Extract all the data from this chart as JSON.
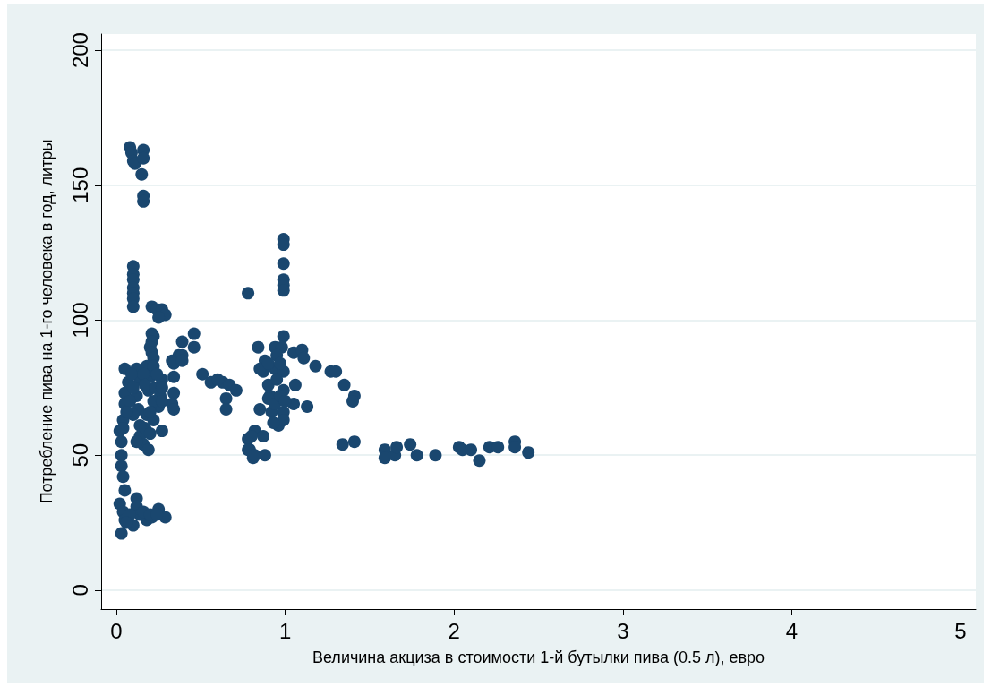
{
  "chart_data": {
    "type": "scatter",
    "xlabel": "Величина акциза в стоимости 1-й бутылки пива (0.5 л), евро",
    "ylabel": "Потребление пива на 1-го человека в год, литры",
    "x": [
      0.08,
      0.09,
      0.1,
      0.11,
      0.16,
      0.16,
      0.15,
      0.16,
      0.16,
      0.1,
      0.1,
      0.1,
      0.1,
      0.1,
      0.1,
      0.1,
      0.78,
      0.21,
      0.24,
      0.27,
      0.29,
      0.25,
      0.21,
      0.22,
      0.21,
      0.2,
      0.21,
      0.22,
      0.39,
      0.46,
      0.46,
      0.37,
      0.33,
      0.34,
      0.39,
      0.39,
      0.34,
      0.34,
      0.33,
      0.34,
      0.05,
      0.12,
      0.18,
      0.22,
      0.07,
      0.14,
      0.2,
      0.27,
      0.05,
      0.12,
      0.19,
      0.26,
      0.05,
      0.13,
      0.25,
      0.18,
      0.22,
      0.04,
      0.14,
      0.27,
      0.02,
      0.14,
      0.16,
      0.19,
      0.03,
      0.03,
      0.03,
      0.04,
      0.05,
      0.09,
      0.16,
      0.24,
      0.1,
      0.17,
      0.23,
      0.27,
      0.08,
      0.22,
      0.27,
      0.1,
      0.2,
      0.06,
      0.17,
      0.2,
      0.04,
      0.12,
      0.02,
      0.04,
      0.12,
      0.12,
      0.05,
      0.1,
      0.18,
      0.25,
      0.29,
      0.03,
      0.14,
      0.21,
      0.08,
      0.16,
      0.2,
      0.24,
      0.06,
      0.51,
      0.56,
      0.63,
      0.67,
      0.71,
      0.65,
      0.65,
      0.6,
      0.99,
      0.99,
      0.99,
      0.99,
      0.99,
      0.99,
      0.99,
      0.84,
      0.94,
      0.98,
      0.88,
      0.95,
      0.87,
      0.94,
      0.99,
      0.85,
      0.9,
      0.97,
      1.05,
      1.1,
      1.11,
      1.18,
      1.27,
      1.3,
      1.35,
      1.41,
      1.4,
      0.9,
      1.06,
      0.99,
      0.91,
      0.9,
      1.05,
      1.13,
      0.85,
      0.92,
      0.99,
      0.94,
      0.96,
      0.99,
      0.82,
      0.87,
      0.78,
      0.8,
      0.79,
      0.81,
      0.88,
      0.78,
      0.82,
      0.95,
      0.97,
      1.0,
      0.93,
      1.34,
      1.41,
      1.59,
      1.59,
      1.65,
      1.66,
      1.74,
      1.78,
      1.89,
      2.03,
      2.05,
      2.1,
      2.15,
      2.21,
      2.26,
      2.36,
      2.36,
      2.44
    ],
    "values": [
      164,
      162,
      159,
      158,
      163,
      160,
      154,
      146,
      144,
      120,
      117,
      115,
      112,
      110,
      108,
      105,
      110,
      105,
      104,
      104,
      102,
      101,
      95,
      94,
      92,
      90,
      88,
      86,
      92,
      95,
      90,
      87,
      85,
      84,
      87,
      85,
      79,
      73,
      69,
      67,
      82,
      82,
      83,
      83,
      77,
      78,
      79,
      78,
      73,
      72,
      74,
      72,
      69,
      67,
      68,
      65,
      63,
      63,
      61,
      59,
      59,
      57,
      54,
      52,
      55,
      50,
      46,
      42,
      37,
      80,
      80,
      80,
      75,
      76,
      75,
      75,
      70,
      70,
      70,
      65,
      66,
      66,
      60,
      58,
      60,
      55,
      32,
      29,
      34,
      31,
      26,
      24,
      26,
      30,
      27,
      21,
      28,
      27,
      28,
      29,
      28,
      28,
      25,
      80,
      77,
      77,
      76,
      74,
      71,
      67,
      78,
      130,
      128,
      121,
      115,
      113,
      111,
      94,
      90,
      90,
      90,
      85,
      87,
      81,
      82,
      81,
      82,
      84,
      84,
      88,
      89,
      86,
      83,
      81,
      81,
      76,
      72,
      70,
      76,
      76,
      74,
      72,
      71,
      69,
      68,
      67,
      66,
      66,
      69,
      61,
      63,
      59,
      57,
      56,
      57,
      52,
      49,
      50,
      52,
      50,
      78,
      72,
      70,
      62,
      54,
      55,
      52,
      49,
      50,
      53,
      54,
      50,
      50,
      53,
      52,
      52,
      48,
      53,
      53,
      55,
      53,
      51
    ],
    "color": "#1a476f",
    "marker": "circle",
    "xlim": [
      -0.09,
      5.09
    ],
    "ylim": [
      -7,
      206
    ],
    "xticks": [
      0,
      1,
      2,
      3,
      4,
      5
    ],
    "yticks": [
      0,
      50,
      100,
      150,
      200
    ],
    "grid": "y"
  }
}
